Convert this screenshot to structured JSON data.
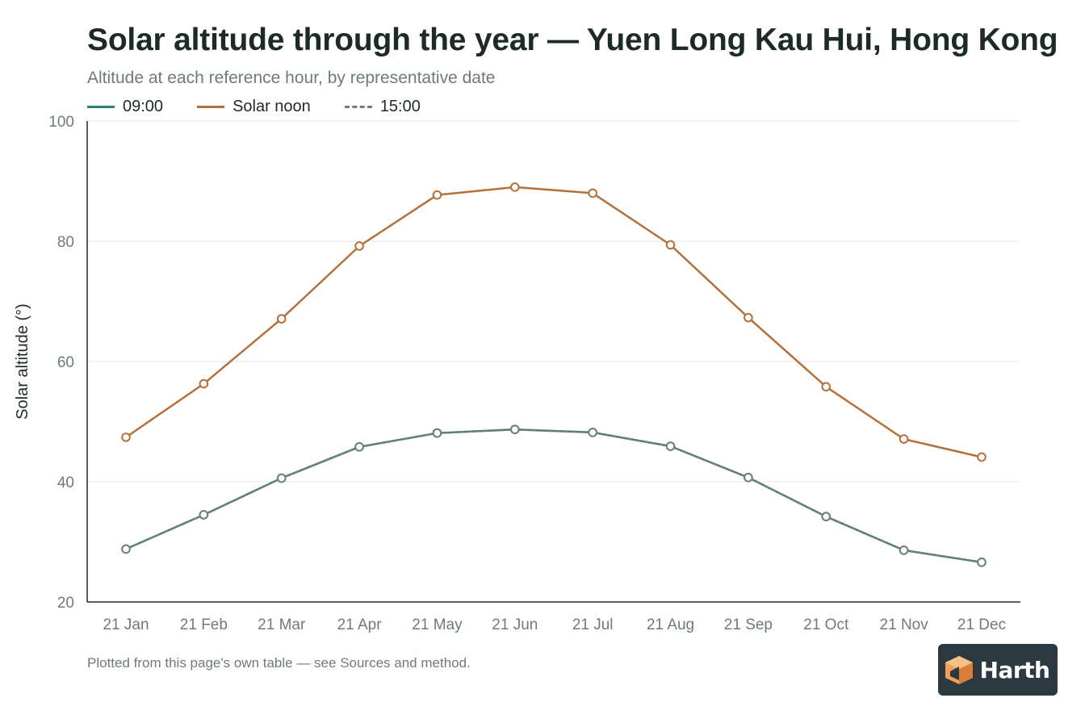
{
  "chart_data": {
    "type": "line",
    "title": "Solar altitude through the year — Yuen Long Kau Hui, Hong Kong",
    "subtitle": "Altitude at each reference hour, by representative date",
    "ylabel": "Solar altitude (°)",
    "xlabel": "",
    "ylim": [
      20,
      100
    ],
    "yticks": [
      20,
      40,
      60,
      80,
      100
    ],
    "grid": true,
    "legend_position": "top-left",
    "categories": [
      "21 Jan",
      "21 Feb",
      "21 Mar",
      "21 Apr",
      "21 May",
      "21 Jun",
      "21 Jul",
      "21 Aug",
      "21 Sep",
      "21 Oct",
      "21 Nov",
      "21 Dec"
    ],
    "series": [
      {
        "name": "09:00",
        "color": "#2f7f79",
        "dash": "solid",
        "values": [
          28.8,
          34.5,
          40.6,
          45.8,
          48.1,
          48.7,
          48.2,
          45.9,
          40.7,
          34.2,
          28.6,
          26.6
        ]
      },
      {
        "name": "Solar noon",
        "color": "#b5703a",
        "dash": "solid",
        "values": [
          47.4,
          56.3,
          67.1,
          79.2,
          87.7,
          89.0,
          88.0,
          79.4,
          67.3,
          55.8,
          47.1,
          44.1
        ]
      },
      {
        "name": "15:00",
        "color": "#6f7f7c",
        "dash": "dashed",
        "values": [
          28.8,
          34.5,
          40.6,
          45.8,
          48.1,
          48.7,
          48.2,
          45.9,
          40.7,
          34.2,
          28.6,
          26.6
        ]
      }
    ],
    "footnote": "Plotted from this page's own table — see Sources and method."
  },
  "brand": {
    "name": "Harth",
    "icon": "house-cube-icon",
    "background": "#2d3941",
    "accent": "#f0a05a"
  }
}
